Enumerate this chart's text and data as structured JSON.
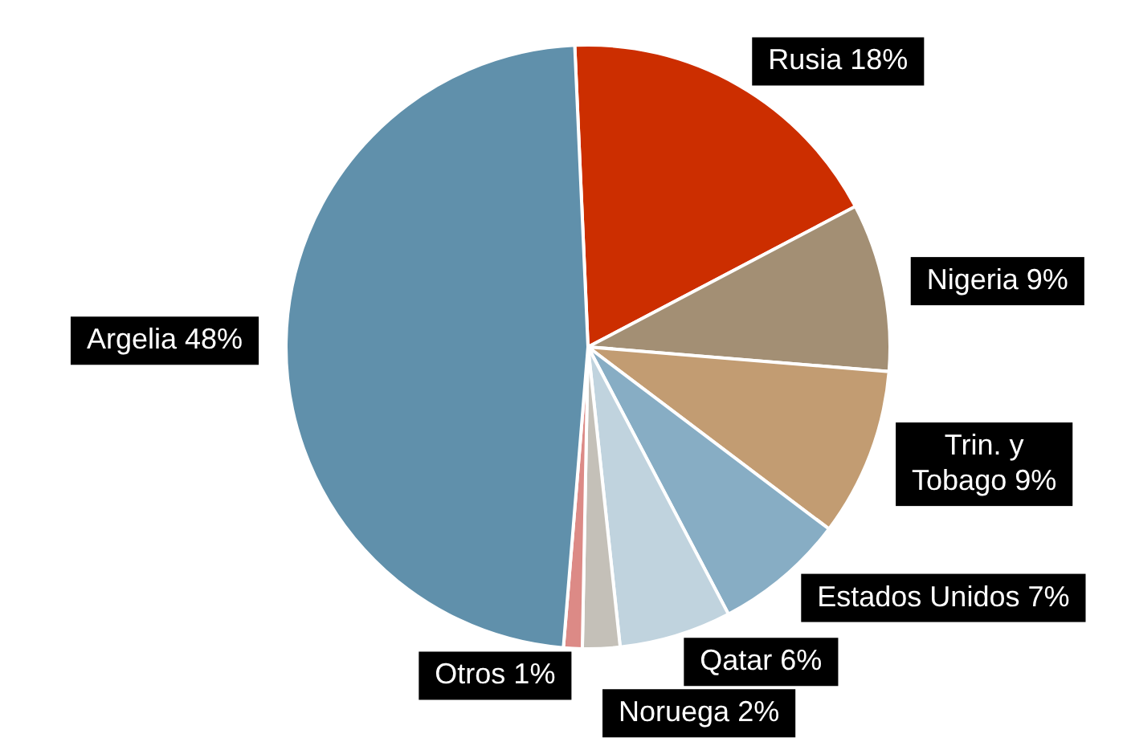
{
  "chart_data": {
    "type": "pie",
    "categories": [
      "Rusia",
      "Nigeria",
      "Trin. y Tobago",
      "Estados Unidos",
      "Qatar",
      "Noruega",
      "Otros",
      "Argelia"
    ],
    "values": [
      18,
      9,
      9,
      7,
      6,
      2,
      1,
      48
    ],
    "value_labels": [
      "18%",
      "9%",
      "9%",
      "7%",
      "6%",
      "2%",
      "1%",
      "48%"
    ],
    "colors": [
      "#cc2e00",
      "#a38f74",
      "#c29c72",
      "#87adc4",
      "#c0d3de",
      "#c4c0b8",
      "#dc8a86",
      "#6090ab"
    ]
  }
}
